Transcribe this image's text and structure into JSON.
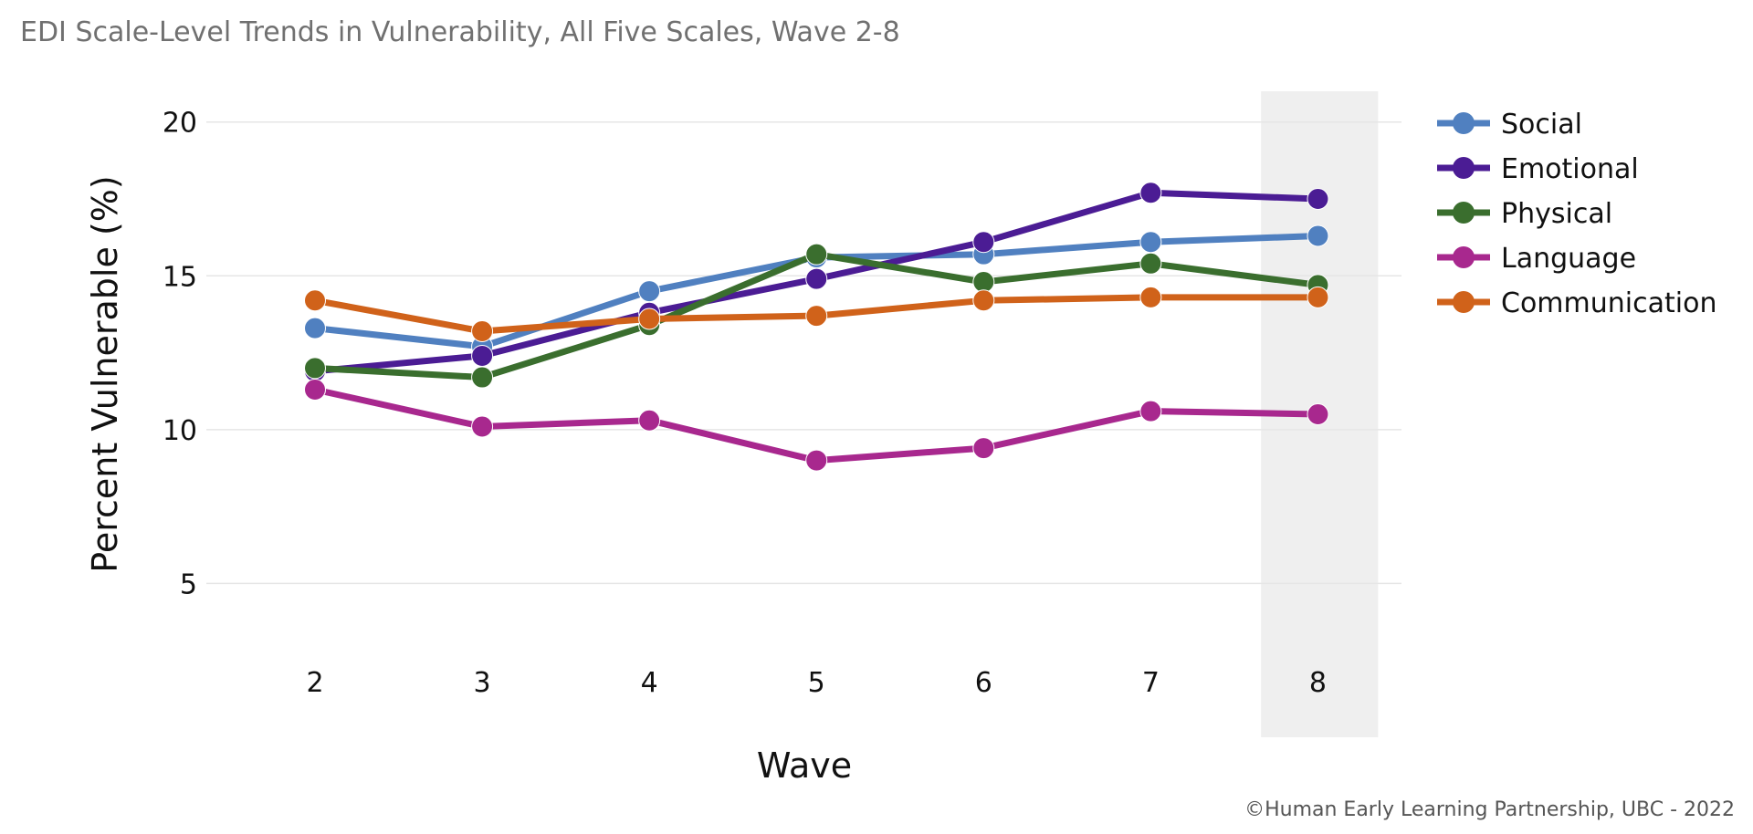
{
  "title": "EDI Scale-Level Trends in Vulnerability, All Five Scales, Wave 2-8",
  "credit": "©Human Early Learning Partnership, UBC - 2022",
  "chart_data": {
    "type": "line",
    "xlabel": "Wave",
    "ylabel": "Percent Vulnerable (%)",
    "x": [
      2,
      3,
      4,
      5,
      6,
      7,
      8
    ],
    "x_tick_labels": [
      "2",
      "3",
      "4",
      "5",
      "6",
      "7",
      "8"
    ],
    "y_ticks": [
      5,
      10,
      15,
      20
    ],
    "y_tick_labels": [
      "5",
      "10",
      "15",
      "20"
    ],
    "xlim": [
      1.35,
      8.5
    ],
    "ylim": [
      0,
      21
    ],
    "grid": "horizontal",
    "highlight_x": 8,
    "legend_position": "right",
    "series": [
      {
        "name": "Social",
        "color": "#5080C0",
        "values": [
          13.3,
          12.7,
          14.5,
          15.6,
          15.7,
          16.1,
          16.3
        ]
      },
      {
        "name": "Emotional",
        "color": "#4B1C94",
        "values": [
          11.9,
          12.4,
          13.8,
          14.9,
          16.1,
          17.7,
          17.5
        ]
      },
      {
        "name": "Physical",
        "color": "#3A6E2E",
        "values": [
          12.0,
          11.7,
          13.4,
          15.7,
          14.8,
          15.4,
          14.7
        ]
      },
      {
        "name": "Language",
        "color": "#A8288E",
        "values": [
          11.3,
          10.1,
          10.3,
          9.0,
          9.4,
          10.6,
          10.5
        ]
      },
      {
        "name": "Communication",
        "color": "#D0621A",
        "values": [
          14.2,
          13.2,
          13.6,
          13.7,
          14.2,
          14.3,
          14.3
        ]
      }
    ]
  }
}
